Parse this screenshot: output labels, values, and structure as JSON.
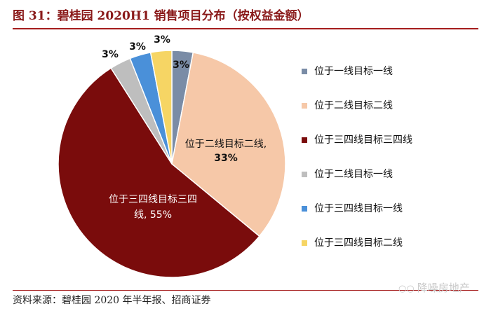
{
  "header": {
    "title": "图 31：碧桂园 2020H1 销售项目分布（按权益金额）"
  },
  "footer": {
    "source": "资料来源：碧桂园 2020 年半年报、招商证券"
  },
  "watermark": {
    "text": "降噪房地产",
    "icon": "wechat-icon"
  },
  "chart_data": {
    "type": "pie",
    "slices": [
      {
        "name": "位于一线目标一线",
        "value": 3,
        "label": "3%",
        "color": "#7a8ca6"
      },
      {
        "name": "位于二线目标二线",
        "value": 33,
        "label": "位于二线目标二线, 33%",
        "color": "#f6c8a8"
      },
      {
        "name": "位于三四线目标三四线",
        "value": 55,
        "label": "位于三四线目标三四线, 55%",
        "color": "#7a0c0c"
      },
      {
        "name": "位于二线目标一线",
        "value": 3,
        "label": "3%",
        "color": "#bebebe"
      },
      {
        "name": "位于三四线目标一线",
        "value": 3,
        "label": "3%",
        "color": "#4a90d9"
      },
      {
        "name": "位于三四线目标二线",
        "value": 3,
        "label": "3%",
        "color": "#f6d564"
      }
    ],
    "legend_position": "right"
  }
}
